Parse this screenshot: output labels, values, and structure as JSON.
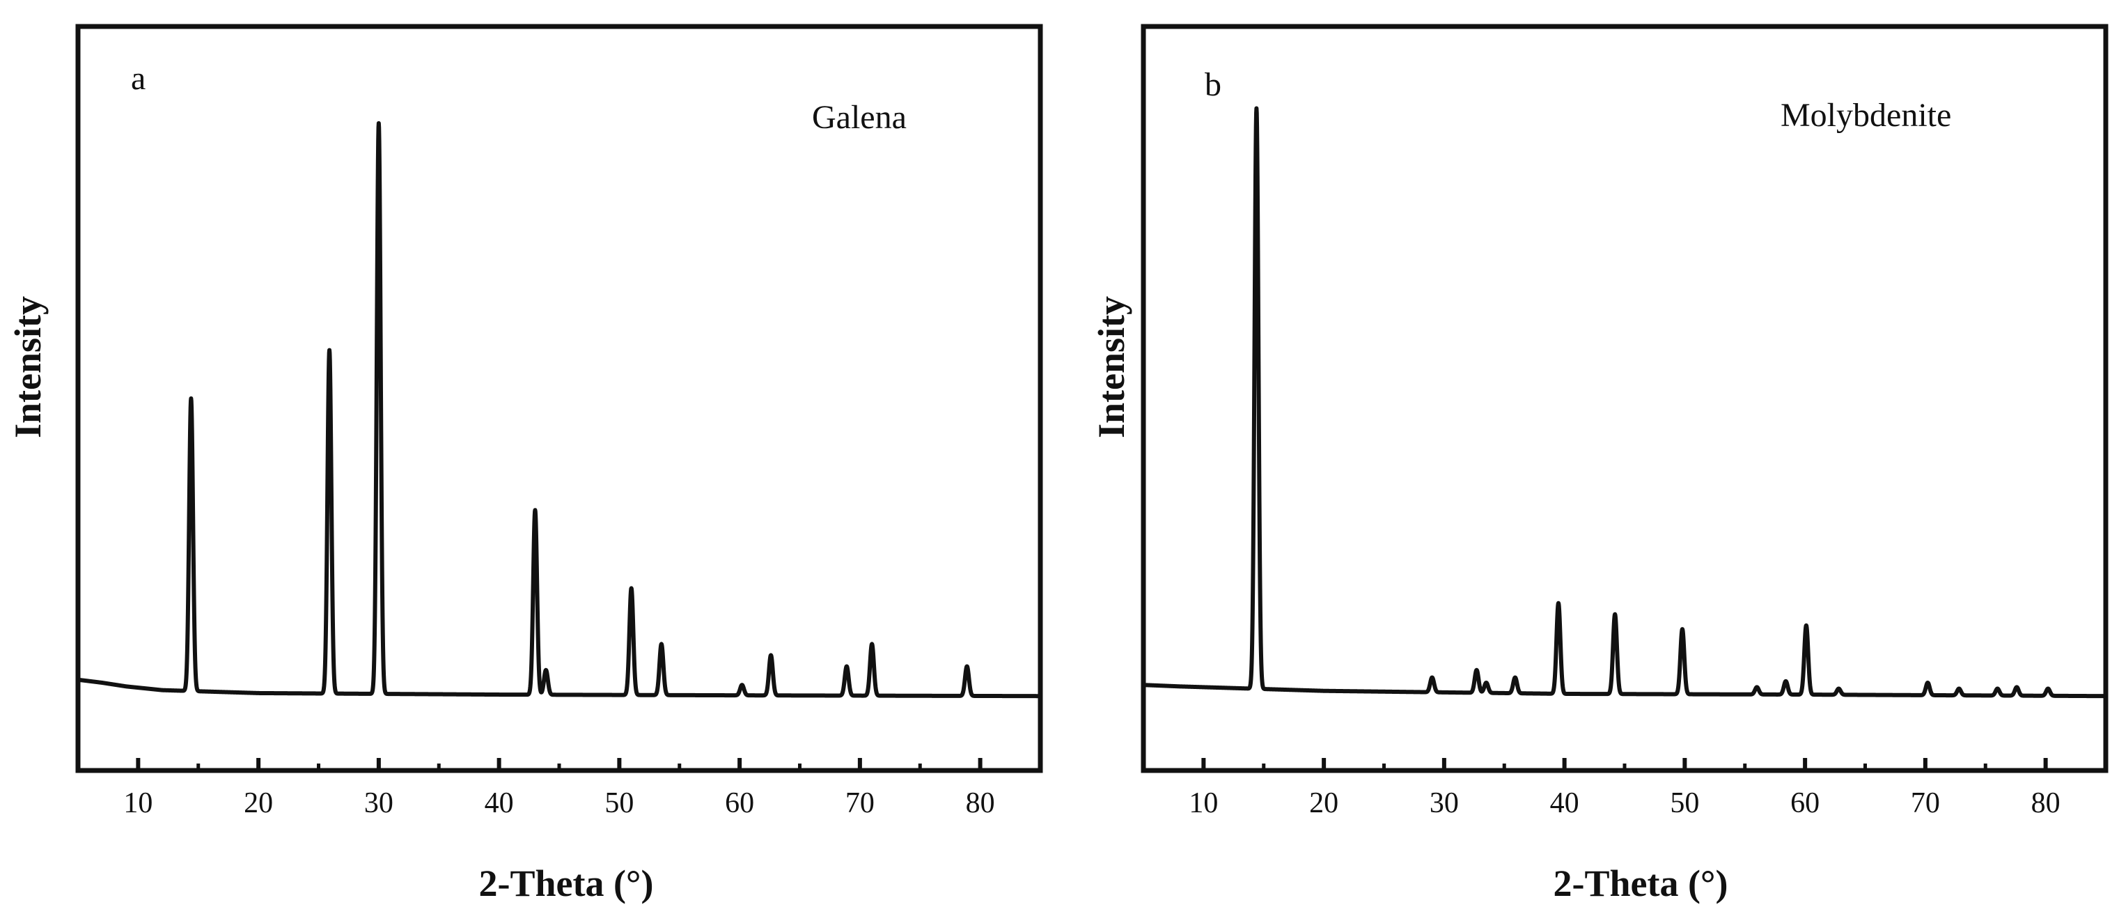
{
  "chart_data": [
    {
      "type": "line",
      "panel_label": "a",
      "title": "Galena",
      "xlabel": "2-Theta (°)",
      "ylabel": "Intensity",
      "xlim": [
        5,
        85
      ],
      "ylim": [
        0,
        100
      ],
      "xticks": [
        10,
        20,
        30,
        40,
        50,
        60,
        70,
        80
      ],
      "y_tick_labels": false,
      "grid": false,
      "legend": "none",
      "line_color": "#111111",
      "baseline": [
        [
          5,
          12.2
        ],
        [
          7,
          11.8
        ],
        [
          9,
          11.3
        ],
        [
          12,
          10.8
        ],
        [
          20,
          10.4
        ],
        [
          40,
          10.2
        ],
        [
          60,
          10.1
        ],
        [
          85,
          10.0
        ]
      ],
      "peaks": [
        {
          "x": 14.4,
          "y": 50.0
        },
        {
          "x": 25.9,
          "y": 56.5
        },
        {
          "x": 30.0,
          "y": 87.0
        },
        {
          "x": 43.0,
          "y": 35.0
        },
        {
          "x": 43.9,
          "y": 13.5
        },
        {
          "x": 51.0,
          "y": 24.5
        },
        {
          "x": 53.5,
          "y": 17.0
        },
        {
          "x": 60.2,
          "y": 11.5
        },
        {
          "x": 62.6,
          "y": 15.5
        },
        {
          "x": 68.9,
          "y": 14.0
        },
        {
          "x": 71.0,
          "y": 17.0
        },
        {
          "x": 78.9,
          "y": 14.0
        }
      ]
    },
    {
      "type": "line",
      "panel_label": "b",
      "title": "Molybdenite",
      "xlabel": "2-Theta (°)",
      "ylabel": "Intensity",
      "xlim": [
        5,
        85
      ],
      "ylim": [
        0,
        100
      ],
      "xticks": [
        10,
        20,
        30,
        40,
        50,
        60,
        70,
        80
      ],
      "y_tick_labels": false,
      "grid": false,
      "legend": "none",
      "line_color": "#111111",
      "baseline": [
        [
          5,
          11.5
        ],
        [
          8,
          11.3
        ],
        [
          12,
          11.1
        ],
        [
          20,
          10.7
        ],
        [
          40,
          10.3
        ],
        [
          60,
          10.2
        ],
        [
          85,
          10.0
        ]
      ],
      "peaks": [
        {
          "x": 14.4,
          "y": 89.0
        },
        {
          "x": 29.0,
          "y": 12.5
        },
        {
          "x": 32.7,
          "y": 13.5
        },
        {
          "x": 33.5,
          "y": 11.8
        },
        {
          "x": 35.9,
          "y": 12.5
        },
        {
          "x": 39.5,
          "y": 22.5
        },
        {
          "x": 44.2,
          "y": 21.0
        },
        {
          "x": 49.8,
          "y": 19.0
        },
        {
          "x": 56.0,
          "y": 11.2
        },
        {
          "x": 58.4,
          "y": 12.0
        },
        {
          "x": 60.1,
          "y": 19.5
        },
        {
          "x": 62.8,
          "y": 11.0
        },
        {
          "x": 70.2,
          "y": 11.8
        },
        {
          "x": 72.8,
          "y": 11.0
        },
        {
          "x": 76.0,
          "y": 11.0
        },
        {
          "x": 77.6,
          "y": 11.2
        },
        {
          "x": 80.2,
          "y": 11.0
        }
      ]
    }
  ]
}
